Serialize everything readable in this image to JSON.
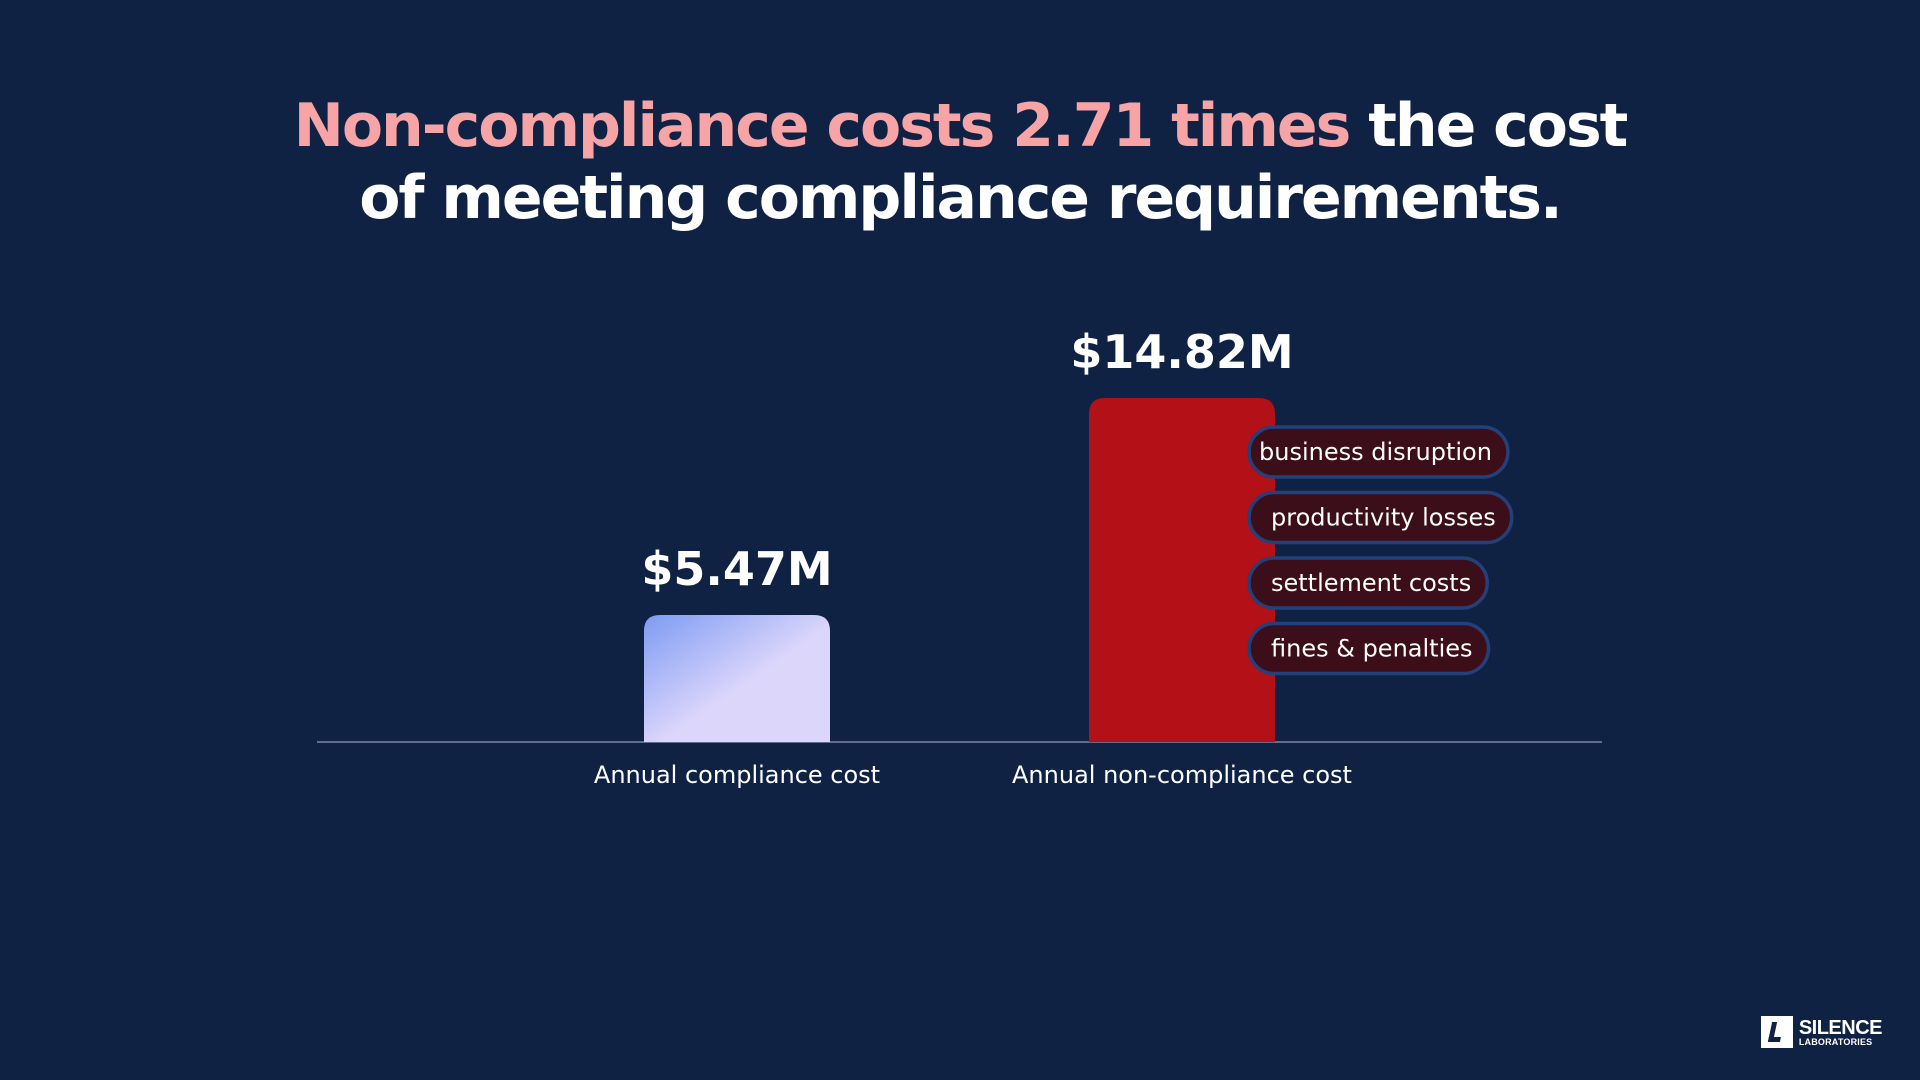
{
  "headline": {
    "highlight": "Non-compliance costs 2.71 times",
    "rest_line1": " the cost",
    "line2": "of meeting compliance requirements."
  },
  "chart_data": {
    "type": "bar",
    "categories": [
      "Annual compliance cost",
      "Annual non-compliance cost"
    ],
    "values": [
      5.47,
      14.82
    ],
    "value_labels": [
      "$5.47M",
      "$14.82M"
    ],
    "unit": "$M",
    "ylim": [
      0,
      14.82
    ],
    "grid": false,
    "colors": [
      "#dcd6fb",
      "#b31117"
    ],
    "gradient_accent": "#7d9bf3",
    "annotations": [
      "business disruption",
      "productivity losses",
      "settlement costs",
      "fines & penalties"
    ],
    "annotation_colors": {
      "fill": "#3b0e1a",
      "border": "#24407a"
    }
  },
  "logo": {
    "name": "SILENCE",
    "sub": "LABORATORIES"
  }
}
